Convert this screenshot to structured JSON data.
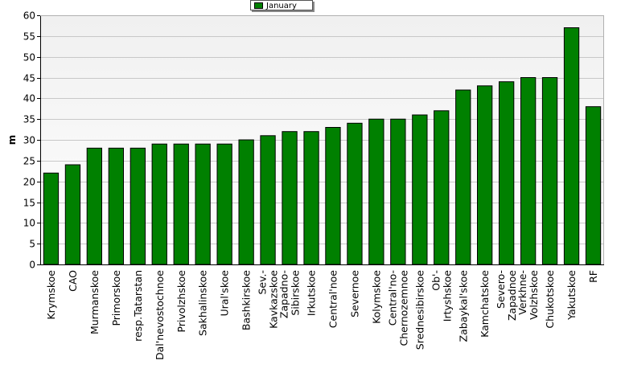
{
  "chart_data": {
    "type": "bar",
    "ylabel": "m",
    "ylim": [
      0,
      60
    ],
    "yticks": [
      0,
      5,
      10,
      15,
      20,
      25,
      30,
      35,
      40,
      45,
      50,
      55,
      60
    ],
    "grid": true,
    "legend_position": "top-center",
    "series": [
      {
        "name": "January",
        "color": "#008000",
        "values": [
          22,
          24,
          28,
          28,
          28,
          29,
          29,
          29,
          29,
          30,
          31,
          32,
          32,
          33,
          34,
          35,
          35,
          36,
          37,
          42,
          43,
          44,
          45,
          45,
          57,
          38
        ]
      }
    ],
    "categories": [
      "Krymskoe",
      "CAO",
      "Murmanskoe",
      "Primorskoe",
      "resp.Tatarstan",
      "Dal'nevostochnoe",
      "Privolzhskoe",
      "Sakhalinskoe",
      "Ural'skoe",
      "Bashkirskoe",
      "Sev.-Kavkazskoe",
      "Zapadno-Sibirskoe",
      "Irkutskoe",
      "Central'noe",
      "Severnoe",
      "Kolymskoe",
      "Central'no-Chernozemnoe",
      "Srednesibirskoe",
      "Ob'-Irtyshskoe",
      "Zabaykal'skoe",
      "Kamchatskoe",
      "Severo-Zapadnoe",
      "Verkhne-Volzhskoe",
      "Chukotskoe",
      "Yakutskoe",
      "RF"
    ],
    "category_label_lines": [
      [
        "Krymskoe"
      ],
      [
        "CAO"
      ],
      [
        "Murmanskoe"
      ],
      [
        "Primorskoe"
      ],
      [
        "resp.Tatarstan"
      ],
      [
        "Dal'nevostochnoe"
      ],
      [
        "Privolzhskoe"
      ],
      [
        "Sakhalinskoe"
      ],
      [
        "Ural'skoe"
      ],
      [
        "Bashkirskoe"
      ],
      [
        "Sev.-",
        "Kavkazskoe"
      ],
      [
        "Zapadno-",
        "Sibirskoe"
      ],
      [
        "Irkutskoe"
      ],
      [
        "Central'noe"
      ],
      [
        "Severnoe"
      ],
      [
        "Kolymskoe"
      ],
      [
        "Central'no-",
        "Chernozemnoe"
      ],
      [
        "Srednesibirskoe"
      ],
      [
        "Ob'-",
        "Irtyshskoe"
      ],
      [
        "Zabaykal'skoe"
      ],
      [
        "Kamchatskoe"
      ],
      [
        "Severo-",
        "Zapadnoe"
      ],
      [
        "Verkhne-",
        "Volzhskoe"
      ],
      [
        "Chukotskoe"
      ],
      [
        "Yakutskoe"
      ],
      [
        "RF"
      ]
    ]
  }
}
